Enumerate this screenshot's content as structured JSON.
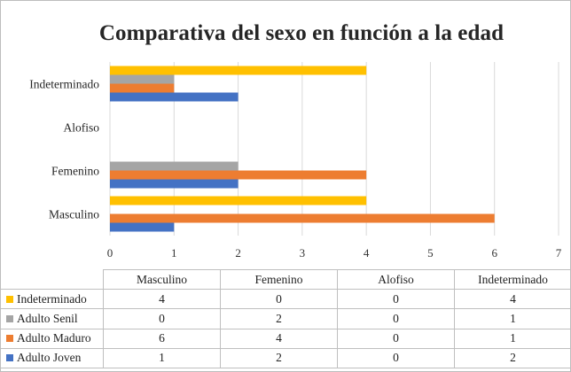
{
  "chart_data": {
    "type": "bar",
    "orientation": "horizontal",
    "title": "Comparativa del sexo en función a la edad",
    "categories": [
      "Masculino",
      "Femenino",
      "Alofiso",
      "Indeterminado"
    ],
    "series": [
      {
        "name": "Adulto Joven",
        "color": "#4472c4",
        "values": [
          1,
          2,
          0,
          2
        ]
      },
      {
        "name": "Adulto Maduro",
        "color": "#ed7d31",
        "values": [
          6,
          4,
          0,
          1
        ]
      },
      {
        "name": "Adulto Senil",
        "color": "#a5a5a5",
        "values": [
          0,
          2,
          0,
          1
        ]
      },
      {
        "name": "Indeterminado",
        "color": "#ffc000",
        "values": [
          4,
          0,
          0,
          4
        ]
      }
    ],
    "xlim": [
      0,
      7
    ],
    "xticks": [
      "0",
      "1",
      "2",
      "3",
      "4",
      "5",
      "6",
      "7"
    ],
    "grid": true,
    "legend": "data-table-below"
  }
}
